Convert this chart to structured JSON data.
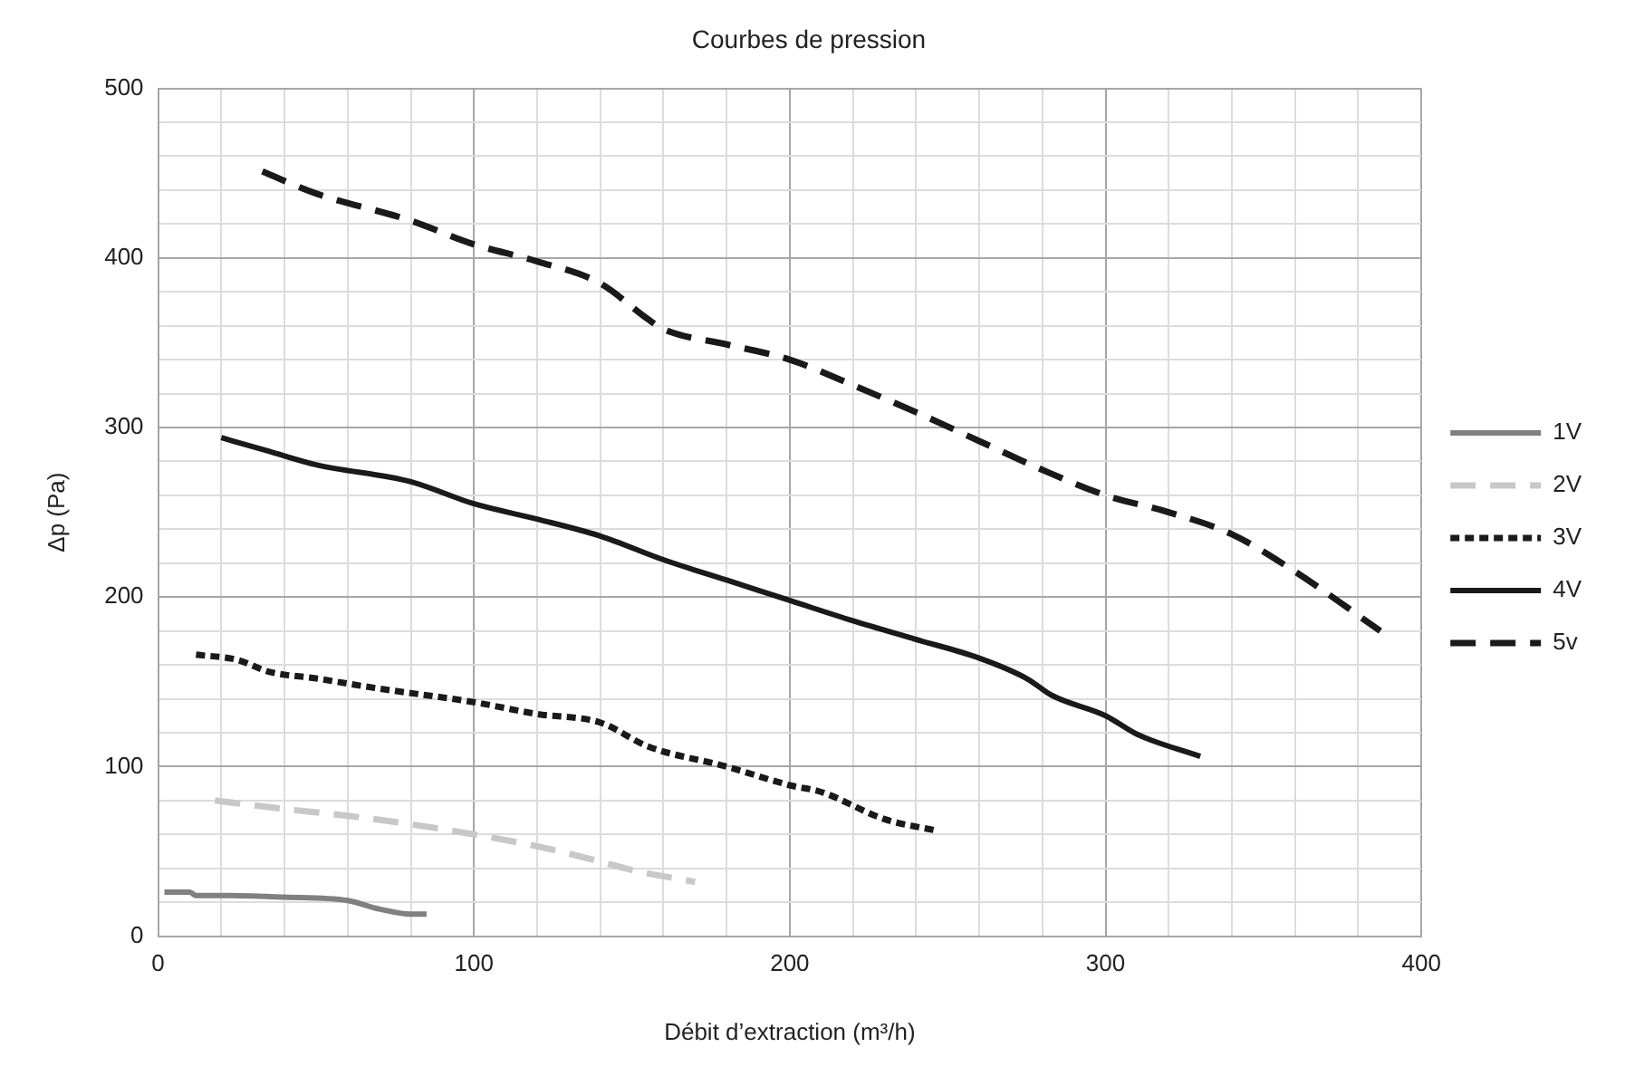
{
  "chart_data": {
    "type": "line",
    "title": "Courbes de pression",
    "xlabel": "Débit d’extraction (m³/h)",
    "ylabel": "Δp (Pa)",
    "xlim": [
      0,
      400
    ],
    "ylim": [
      0,
      500
    ],
    "xticks": [
      0,
      {
        "value": 20,
        "label": null
      },
      {
        "value": 40,
        "label": null
      },
      {
        "value": 60,
        "label": null
      },
      {
        "value": 80,
        "label": null
      },
      100,
      {
        "value": 120,
        "label": null
      },
      {
        "value": 140,
        "label": null
      },
      {
        "value": 160,
        "label": null
      },
      {
        "value": 180,
        "label": null
      },
      200,
      {
        "value": 220,
        "label": null
      },
      {
        "value": 240,
        "label": null
      },
      {
        "value": 260,
        "label": null
      },
      {
        "value": 280,
        "label": null
      },
      300,
      {
        "value": 320,
        "label": null
      },
      {
        "value": 340,
        "label": null
      },
      {
        "value": 360,
        "label": null
      },
      {
        "value": 380,
        "label": null
      },
      400
    ],
    "yticks": [
      0,
      {
        "value": 20,
        "label": null
      },
      {
        "value": 40,
        "label": null
      },
      {
        "value": 60,
        "label": null
      },
      {
        "value": 80,
        "label": null
      },
      100,
      {
        "value": 120,
        "label": null
      },
      {
        "value": 140,
        "label": null
      },
      {
        "value": 160,
        "label": null
      },
      {
        "value": 180,
        "label": null
      },
      200,
      {
        "value": 220,
        "label": null
      },
      {
        "value": 240,
        "label": null
      },
      {
        "value": 260,
        "label": null
      },
      {
        "value": 280,
        "label": null
      },
      300,
      {
        "value": 320,
        "label": null
      },
      {
        "value": 340,
        "label": null
      },
      {
        "value": 360,
        "label": null
      },
      {
        "value": 380,
        "label": null
      },
      400,
      {
        "value": 420,
        "label": null
      },
      {
        "value": 440,
        "label": null
      },
      {
        "value": 460,
        "label": null
      },
      {
        "value": 480,
        "label": null
      },
      500
    ],
    "grid": true,
    "legend": "right",
    "marker": "none",
    "series": [
      {
        "name": "1V",
        "color": "#808080",
        "line_style": "solid",
        "x": [
          2,
          10,
          12,
          20,
          40,
          60,
          70,
          80,
          85
        ],
        "values": [
          26,
          26,
          24,
          24,
          23,
          21,
          16,
          13,
          13
        ]
      },
      {
        "name": "2V",
        "color": "#c8c8c8",
        "line_style": "dashed",
        "x": [
          18,
          40,
          60,
          80,
          100,
          120,
          140,
          150,
          170
        ],
        "values": [
          80,
          75,
          71,
          66,
          60,
          53,
          44,
          39,
          32
        ]
      },
      {
        "name": "3V",
        "color": "#1a1a1a",
        "line_style": "dotted",
        "x": [
          12,
          25,
          35,
          50,
          70,
          100,
          120,
          140,
          155,
          180,
          200,
          210,
          230,
          247
        ],
        "values": [
          166,
          163,
          156,
          152,
          146,
          138,
          131,
          126,
          112,
          100,
          89,
          85,
          69,
          62
        ]
      },
      {
        "name": "4V",
        "color": "#1a1a1a",
        "line_style": "solid",
        "x": [
          20,
          35,
          50,
          80,
          100,
          120,
          140,
          160,
          180,
          200,
          220,
          240,
          260,
          275,
          283,
          300,
          310,
          330
        ],
        "values": [
          294,
          286,
          278,
          268,
          255,
          246,
          236,
          222,
          210,
          198,
          186,
          175,
          164,
          152,
          142,
          130,
          119,
          106
        ]
      },
      {
        "name": "5v",
        "color": "#1a1a1a",
        "line_style": "dashed",
        "x": [
          33,
          50,
          80,
          100,
          120,
          140,
          155,
          160,
          180,
          200,
          220,
          240,
          260,
          280,
          300,
          320,
          340,
          360,
          387
        ],
        "values": [
          451,
          438,
          422,
          408,
          398,
          385,
          364,
          358,
          349,
          340,
          325,
          309,
          292,
          275,
          260,
          250,
          237,
          215,
          180
        ]
      }
    ]
  }
}
